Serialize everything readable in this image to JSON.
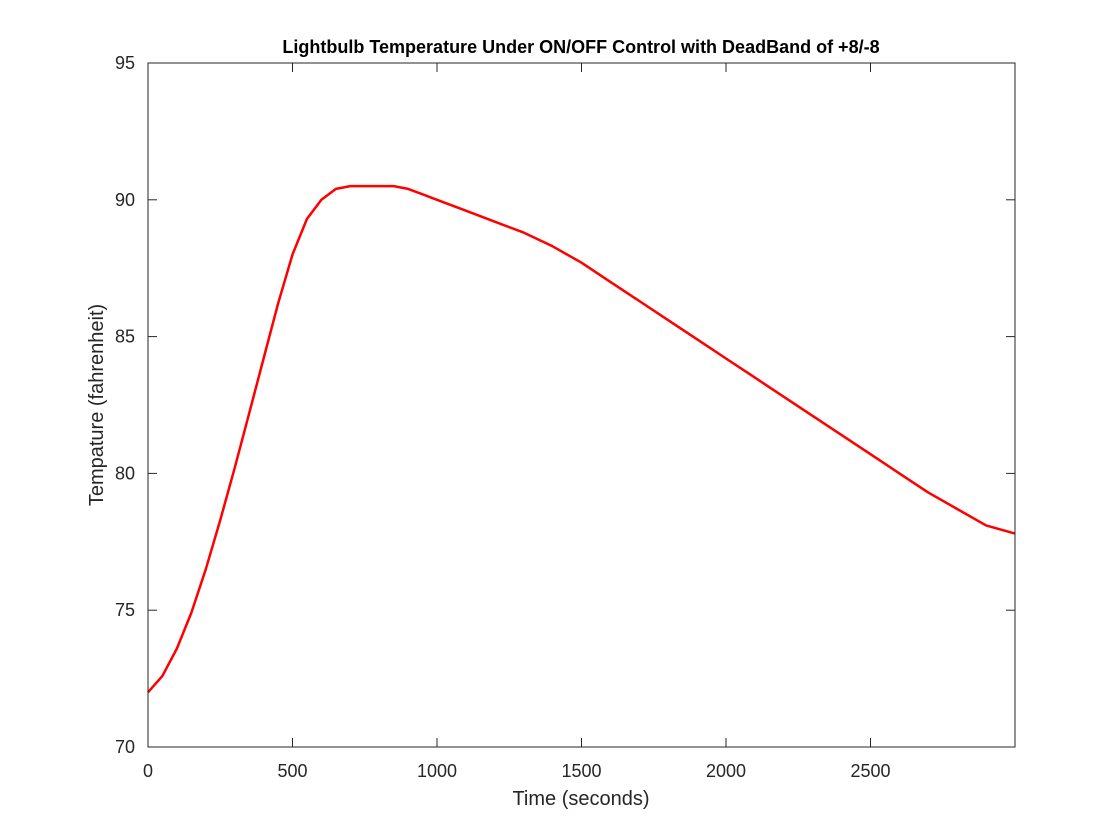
{
  "chart_data": {
    "type": "line",
    "title": "Lightbulb Temperature Under ON/OFF Control with DeadBand of +8/-8",
    "xlabel": "Time (seconds)",
    "ylabel": "Tempature (fahrenheit)",
    "xlim": [
      0,
      3000
    ],
    "ylim": [
      70,
      95
    ],
    "xticks": [
      0,
      500,
      1000,
      1500,
      2000,
      2500
    ],
    "yticks": [
      70,
      75,
      80,
      85,
      90,
      95
    ],
    "grid": false,
    "box": true,
    "colors": {
      "line": "#ff0000",
      "axes": "#262626"
    },
    "series": [
      {
        "x": [
          0,
          50,
          100,
          150,
          200,
          250,
          300,
          350,
          400,
          450,
          500,
          550,
          600,
          650,
          700,
          750,
          800,
          850,
          900,
          950,
          1000,
          1100,
          1200,
          1300,
          1400,
          1500,
          1600,
          1700,
          1800,
          1900,
          2000,
          2100,
          2200,
          2300,
          2400,
          2500,
          2600,
          2700,
          2800,
          2900,
          3000
        ],
        "values": [
          72.0,
          72.6,
          73.6,
          74.9,
          76.5,
          78.3,
          80.2,
          82.2,
          84.2,
          86.2,
          88.0,
          89.3,
          90.0,
          90.4,
          90.5,
          90.5,
          90.5,
          90.5,
          90.4,
          90.2,
          90.0,
          89.6,
          89.2,
          88.8,
          88.3,
          87.7,
          87.0,
          86.3,
          85.6,
          84.9,
          84.2,
          83.5,
          82.8,
          82.1,
          81.4,
          80.7,
          80.0,
          79.3,
          78.7,
          78.1,
          77.8
        ]
      }
    ]
  }
}
